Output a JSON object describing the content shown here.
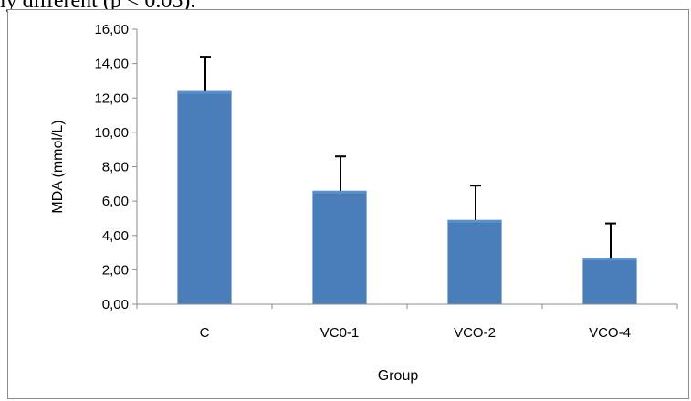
{
  "page": {
    "top_text": "ly different (p < 0.05)."
  },
  "colors": {
    "bar": "#4a7ebb",
    "bar_highlight": "#5a8fd0",
    "error_bar": "#000000",
    "axis": "#8c8c8c",
    "frame": "#8c8c8c"
  },
  "chart_data": {
    "type": "bar",
    "title": "",
    "xlabel": "Group",
    "ylabel": "MDA (mmol/L)",
    "categories": [
      "C",
      "VC0-1",
      "VCO-2",
      "VCO-4"
    ],
    "values": [
      12.4,
      6.6,
      4.9,
      2.7
    ],
    "error_plus": [
      2.0,
      2.0,
      2.0,
      2.0
    ],
    "ylim": [
      0,
      16
    ],
    "yticks": [
      0,
      2,
      4,
      6,
      8,
      10,
      12,
      14,
      16
    ],
    "ytick_labels": [
      "0,00",
      "2,00",
      "4,00",
      "6,00",
      "8,00",
      "10,00",
      "12,00",
      "14,00",
      "16,00"
    ],
    "grid": false,
    "legend": "none"
  }
}
